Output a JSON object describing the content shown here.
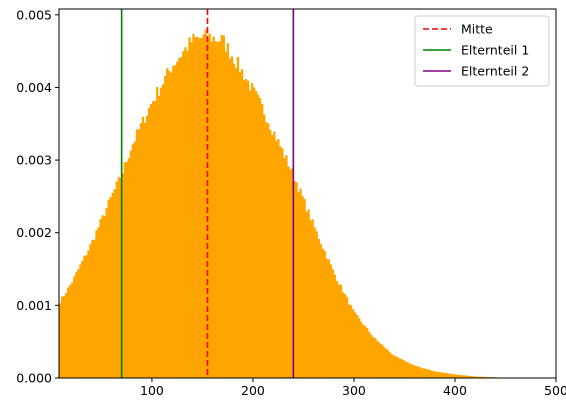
{
  "chart_data": {
    "type": "bar",
    "title": "",
    "xlabel": "",
    "ylabel": "",
    "xlim": [
      8,
      500
    ],
    "ylim": [
      0,
      0.00508
    ],
    "x_ticks": [
      100,
      200,
      300,
      400,
      500
    ],
    "x_tick_labels": [
      "100",
      "200",
      "300",
      "400",
      "500"
    ],
    "y_ticks": [
      0,
      0.001,
      0.002,
      0.003,
      0.004,
      0.005
    ],
    "y_tick_labels": [
      "0.000",
      "0.001",
      "0.002",
      "0.003",
      "0.004",
      "0.005"
    ],
    "grid": false,
    "legend_position": "top-right",
    "histogram": {
      "color": "#ffa500",
      "bin_start": 8,
      "bin_width": 2,
      "profile": [
        [
          8,
          0.00103
        ],
        [
          20,
          0.0013
        ],
        [
          40,
          0.00185
        ],
        [
          60,
          0.0025
        ],
        [
          70,
          0.0028
        ],
        [
          80,
          0.0032
        ],
        [
          100,
          0.0038
        ],
        [
          120,
          0.0043
        ],
        [
          140,
          0.00465
        ],
        [
          155,
          0.0047
        ],
        [
          170,
          0.00465
        ],
        [
          190,
          0.0042
        ],
        [
          210,
          0.0037
        ],
        [
          230,
          0.0031
        ],
        [
          240,
          0.0028
        ],
        [
          260,
          0.0021
        ],
        [
          280,
          0.00145
        ],
        [
          300,
          0.0009
        ],
        [
          320,
          0.00055
        ],
        [
          340,
          0.0003
        ],
        [
          360,
          0.00017
        ],
        [
          380,
          9e-05
        ],
        [
          400,
          5e-05
        ],
        [
          420,
          2e-05
        ],
        [
          440,
          1e-05
        ],
        [
          460,
          0.0
        ],
        [
          500,
          0.0
        ]
      ]
    },
    "vlines": [
      {
        "name": "Mitte",
        "x": 155,
        "color": "#ff0000",
        "style": "dashed"
      },
      {
        "name": "Elternteil 1",
        "x": 70,
        "color": "#008000",
        "style": "solid"
      },
      {
        "name": "Elternteil 2",
        "x": 240,
        "color": "#800080",
        "style": "solid"
      }
    ]
  }
}
